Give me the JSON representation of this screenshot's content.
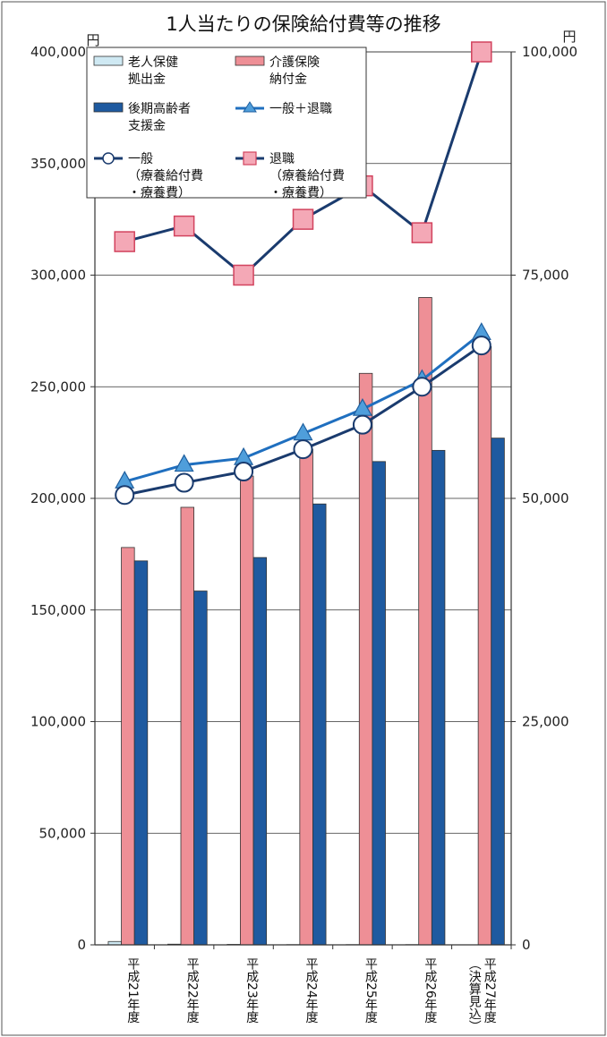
{
  "chart_data": {
    "type": "bar",
    "title": "1人当たりの保険給付費等の推移",
    "y_left_unit": "円",
    "y_right_unit": "円",
    "y_left_lim": [
      0,
      400000
    ],
    "y_right_lim": [
      0,
      100000
    ],
    "y_left_ticks": [
      "0",
      "50,000",
      "100,000",
      "150,000",
      "200,000",
      "250,000",
      "300,000",
      "350,000",
      "400,000"
    ],
    "y_right_ticks": [
      "0",
      "25,000",
      "50,000",
      "75,000",
      "100,000"
    ],
    "grid": true,
    "legend_position": "top-left",
    "categories": [
      {
        "line1": "平成21年度",
        "line2": ""
      },
      {
        "line1": "平成22年度",
        "line2": ""
      },
      {
        "line1": "平成23年度",
        "line2": ""
      },
      {
        "line1": "平成24年度",
        "line2": ""
      },
      {
        "line1": "平成25年度",
        "line2": ""
      },
      {
        "line1": "平成26年度",
        "line2": ""
      },
      {
        "line1": "平成27年度",
        "line2": "（決算見込）"
      }
    ],
    "bar_series": [
      {
        "name_lines": [
          "老人保健",
          "拠出金"
        ],
        "color": "#cfe9f3",
        "axis": "left",
        "values": [
          1500,
          300,
          200,
          100,
          100,
          100,
          0
        ]
      },
      {
        "name_lines": [
          "介護保険",
          "納付金"
        ],
        "color": "#ee8f96",
        "axis": "right",
        "values": [
          44500,
          49000,
          52500,
          55500,
          64000,
          72500,
          67000
        ]
      },
      {
        "name_lines": [
          "後期高齢者",
          "支援金"
        ],
        "color": "#1e5aa0",
        "axis": "left",
        "values": [
          172000,
          158500,
          173500,
          197500,
          216500,
          221500,
          227000
        ]
      }
    ],
    "line_series": [
      {
        "name_lines": [
          "一般＋退職"
        ],
        "color": "#1f6fbf",
        "marker": "triangle",
        "axis": "left",
        "values": [
          207500,
          215000,
          218000,
          229000,
          240000,
          253000,
          274000
        ]
      },
      {
        "name_lines": [
          "一般",
          "（療養給付費",
          "・療養費）"
        ],
        "color": "#1a3b6e",
        "marker": "circle",
        "axis": "left",
        "values": [
          201500,
          207000,
          212000,
          222000,
          233000,
          250000,
          268500
        ]
      },
      {
        "name_lines": [
          "退職",
          "（療養給付費",
          "・療養費）"
        ],
        "color": "#1a3b6e",
        "marker": "square",
        "axis": "left",
        "values": [
          315000,
          322000,
          300000,
          325000,
          340000,
          319000,
          400000
        ]
      }
    ]
  }
}
